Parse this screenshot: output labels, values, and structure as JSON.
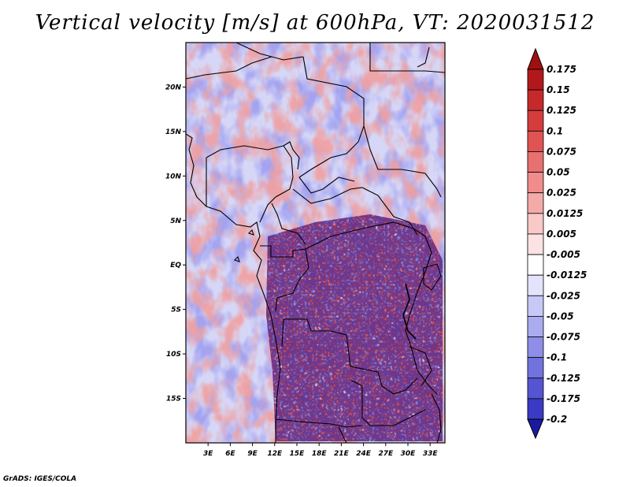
{
  "title": "Vertical velocity [m/s] at 600hPa, VT: 2020031512",
  "footer": "GrADS: IGES/COLA",
  "map": {
    "lat_labels": [
      {
        "value": 20,
        "label": "20N"
      },
      {
        "value": 15,
        "label": "15N"
      },
      {
        "value": 10,
        "label": "10N"
      },
      {
        "value": 5,
        "label": "5N"
      },
      {
        "value": 0,
        "label": "EQ"
      },
      {
        "value": -5,
        "label": "5S"
      },
      {
        "value": -10,
        "label": "10S"
      },
      {
        "value": -15,
        "label": "15S"
      }
    ],
    "lon_labels": [
      {
        "value": 3,
        "label": "3E"
      },
      {
        "value": 6,
        "label": "6E"
      },
      {
        "value": 9,
        "label": "9E"
      },
      {
        "value": 12,
        "label": "12E"
      },
      {
        "value": 15,
        "label": "15E"
      },
      {
        "value": 18,
        "label": "18E"
      },
      {
        "value": 21,
        "label": "21E"
      },
      {
        "value": 24,
        "label": "24E"
      },
      {
        "value": 27,
        "label": "27E"
      },
      {
        "value": 30,
        "label": "30E"
      },
      {
        "value": 33,
        "label": "33E"
      }
    ],
    "lon_range": [
      0,
      35
    ],
    "lat_range": [
      -20,
      25
    ]
  },
  "colorbar": {
    "levels": [
      {
        "label": "0.175",
        "color": "#b2181b"
      },
      {
        "label": "0.15",
        "color": "#c52a2a"
      },
      {
        "label": "0.125",
        "color": "#d53c3c"
      },
      {
        "label": "0.1",
        "color": "#e05353"
      },
      {
        "label": "0.075",
        "color": "#e87070"
      },
      {
        "label": "0.05",
        "color": "#f08c8c"
      },
      {
        "label": "0.025",
        "color": "#f5aaaa"
      },
      {
        "label": "0.0125",
        "color": "#f9c8c8"
      },
      {
        "label": "0.005",
        "color": "#fce3e3"
      },
      {
        "label": "-0.005",
        "color": "#ffffff"
      },
      {
        "label": "-0.0125",
        "color": "#e3e3fc"
      },
      {
        "label": "-0.025",
        "color": "#c8c8f6"
      },
      {
        "label": "-0.05",
        "color": "#ababf0"
      },
      {
        "label": "-0.075",
        "color": "#8e8ee8"
      },
      {
        "label": "-0.1",
        "color": "#7272de"
      },
      {
        "label": "-0.125",
        "color": "#5555d2"
      },
      {
        "label": "-0.175",
        "color": "#3a3ac4"
      },
      {
        "label": "-0.2",
        "color": "#2020b0"
      }
    ],
    "top_arrow_color": "#a01010",
    "bottom_arrow_color": "#1a1aa0"
  }
}
